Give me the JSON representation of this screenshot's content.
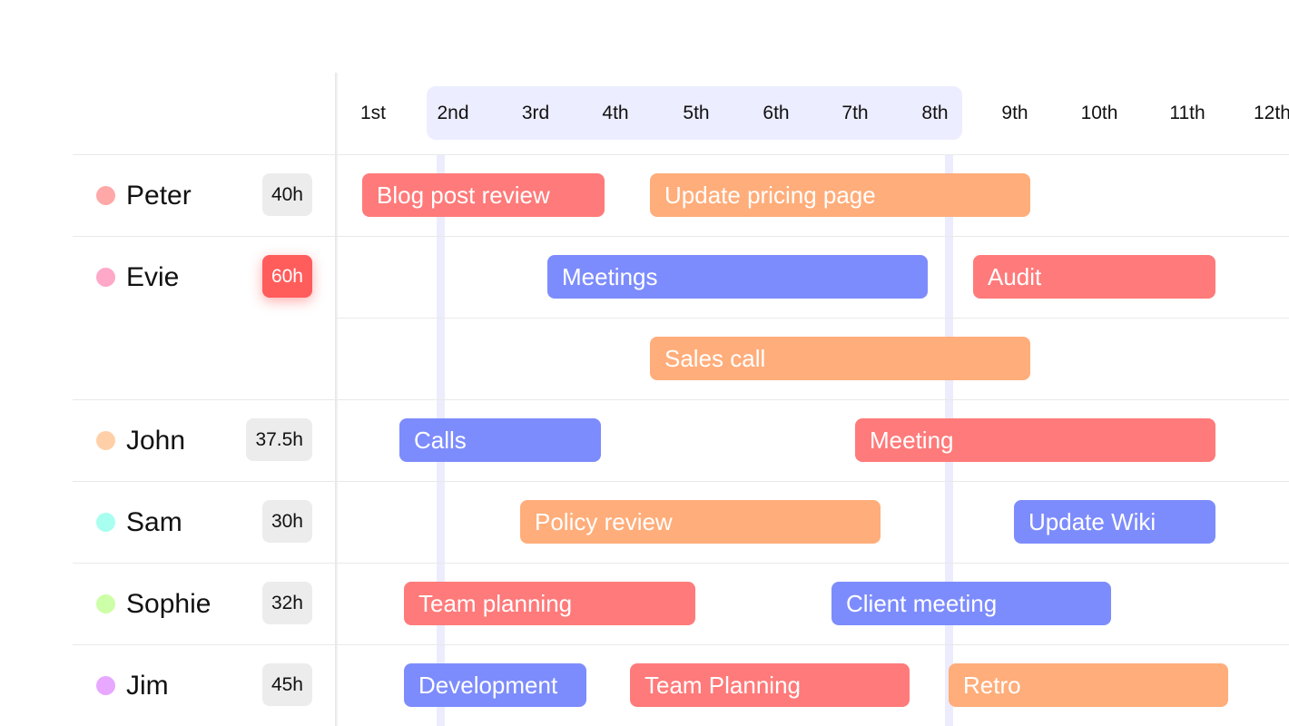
{
  "colors": {
    "task_red": "#ff7a7a",
    "task_orange": "#ffad7a",
    "task_blue": "#7d8cfc",
    "highlight_range": "#ecedfe",
    "overbooked_badge": "#ff5c5c"
  },
  "timeline": {
    "dates": [
      "1st",
      "2nd",
      "3rd",
      "4th",
      "5th",
      "6th",
      "7th",
      "8th",
      "9th",
      "10th",
      "11th",
      "12th"
    ],
    "highlighted_range": [
      "2nd",
      "8th"
    ]
  },
  "people": [
    {
      "name": "Peter",
      "hours": "40h",
      "dot_color": "#ffa8a8",
      "overbooked": false
    },
    {
      "name": "Evie",
      "hours": "60h",
      "dot_color": "#ffa8c8",
      "overbooked": true
    },
    {
      "name": "John",
      "hours": "37.5h",
      "dot_color": "#ffd0a8",
      "overbooked": false
    },
    {
      "name": "Sam",
      "hours": "30h",
      "dot_color": "#a8fff0",
      "overbooked": false
    },
    {
      "name": "Sophie",
      "hours": "32h",
      "dot_color": "#ccffa8",
      "overbooked": false
    },
    {
      "name": "Jim",
      "hours": "45h",
      "dot_color": "#e8a8ff",
      "overbooked": false
    }
  ],
  "tasks": [
    {
      "label": "Blog post review",
      "owner": "Peter",
      "color": "red"
    },
    {
      "label": "Update pricing page",
      "owner": "Peter",
      "color": "orange"
    },
    {
      "label": "Meetings",
      "owner": "Evie",
      "color": "blue"
    },
    {
      "label": "Audit",
      "owner": "Evie",
      "color": "red"
    },
    {
      "label": "Sales call",
      "owner": "Evie",
      "color": "orange"
    },
    {
      "label": "Calls",
      "owner": "John",
      "color": "blue"
    },
    {
      "label": "Meeting",
      "owner": "John",
      "color": "red"
    },
    {
      "label": "Policy review",
      "owner": "Sam",
      "color": "orange"
    },
    {
      "label": "Update Wiki",
      "owner": "Sam",
      "color": "blue"
    },
    {
      "label": "Team planning",
      "owner": "Sophie",
      "color": "red"
    },
    {
      "label": "Client meeting",
      "owner": "Sophie",
      "color": "blue"
    },
    {
      "label": "Development",
      "owner": "Jim",
      "color": "blue"
    },
    {
      "label": "Team Planning",
      "owner": "Jim",
      "color": "red"
    },
    {
      "label": "Retro",
      "owner": "Jim",
      "color": "orange"
    }
  ]
}
